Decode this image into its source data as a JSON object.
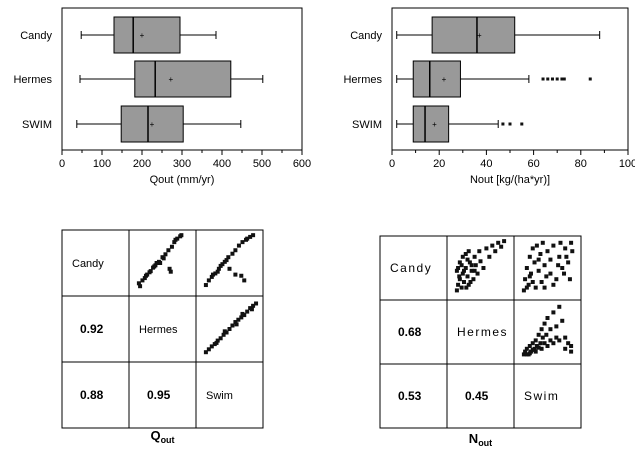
{
  "colors": {
    "box_fill": "#999999",
    "line": "#000000",
    "point": "#111111"
  },
  "chart_data": [
    {
      "type": "boxplot",
      "xlabel": "Qout (mm/yr)",
      "xlim": [
        0,
        600
      ],
      "xticks": [
        "0",
        "100",
        "200",
        "300",
        "400",
        "500",
        "600"
      ],
      "categories": [
        "Candy",
        "Hermes",
        "SWIM"
      ],
      "boxes": [
        {
          "name": "Candy",
          "whisker_low": 48,
          "q1": 130,
          "median": 178,
          "mean": 200,
          "q3": 295,
          "whisker_high": 385,
          "outliers": []
        },
        {
          "name": "Hermes",
          "whisker_low": 45,
          "q1": 182,
          "median": 233,
          "mean": 272,
          "q3": 422,
          "whisker_high": 502,
          "outliers": []
        },
        {
          "name": "SWIM",
          "whisker_low": 37,
          "q1": 148,
          "median": 215,
          "mean": 225,
          "q3": 303,
          "whisker_high": 447,
          "outliers": []
        }
      ]
    },
    {
      "type": "boxplot",
      "xlabel": "Nout [kg/(ha*yr)]",
      "xlim": [
        0,
        100
      ],
      "xticks": [
        "0",
        "20",
        "40",
        "60",
        "80",
        "100"
      ],
      "categories": [
        "Candy",
        "Hermes",
        "SWIM"
      ],
      "boxes": [
        {
          "name": "Candy",
          "whisker_low": 2,
          "q1": 17,
          "median": 36,
          "mean": 37,
          "q3": 52,
          "whisker_high": 88,
          "outliers": []
        },
        {
          "name": "Hermes",
          "whisker_low": 2,
          "q1": 9,
          "median": 16,
          "mean": 22,
          "q3": 29,
          "whisker_high": 58,
          "outliers": [
            64,
            66,
            68,
            70,
            72,
            73,
            84
          ]
        },
        {
          "name": "SWIM",
          "whisker_low": 2,
          "q1": 9,
          "median": 14,
          "mean": 18,
          "q3": 24,
          "whisker_high": 45,
          "outliers": [
            47,
            50,
            55
          ]
        }
      ]
    },
    {
      "type": "scatter_matrix",
      "caption_main": "Q",
      "caption_sub": "out",
      "labels": [
        "Candy",
        "Hermes",
        "Swim"
      ],
      "correlations": [
        {
          "row": 1,
          "col": 0,
          "value": "0.92"
        },
        {
          "row": 2,
          "col": 0,
          "value": "0.88"
        },
        {
          "row": 2,
          "col": 1,
          "value": "0.95"
        }
      ],
      "scatter": [
        {
          "row": 0,
          "col": 1,
          "points": [
            [
              0.1,
              0.15
            ],
            [
              0.16,
              0.2
            ],
            [
              0.22,
              0.28
            ],
            [
              0.28,
              0.34
            ],
            [
              0.34,
              0.42
            ],
            [
              0.38,
              0.46
            ],
            [
              0.44,
              0.52
            ],
            [
              0.5,
              0.6
            ],
            [
              0.55,
              0.65
            ],
            [
              0.3,
              0.36
            ],
            [
              0.2,
              0.24
            ],
            [
              0.6,
              0.72
            ],
            [
              0.7,
              0.86
            ],
            [
              0.75,
              0.92
            ],
            [
              0.8,
              0.96
            ],
            [
              0.66,
              0.78
            ],
            [
              0.46,
              0.5
            ],
            [
              0.62,
              0.4
            ],
            [
              0.64,
              0.35
            ],
            [
              0.24,
              0.3
            ],
            [
              0.12,
              0.1
            ],
            [
              0.4,
              0.5
            ],
            [
              0.36,
              0.44
            ],
            [
              0.52,
              0.58
            ],
            [
              0.72,
              0.9
            ],
            [
              0.82,
              0.98
            ]
          ]
        },
        {
          "row": 0,
          "col": 2,
          "points": [
            [
              0.1,
              0.12
            ],
            [
              0.15,
              0.2
            ],
            [
              0.2,
              0.26
            ],
            [
              0.26,
              0.32
            ],
            [
              0.32,
              0.4
            ],
            [
              0.38,
              0.48
            ],
            [
              0.42,
              0.52
            ],
            [
              0.48,
              0.6
            ],
            [
              0.55,
              0.66
            ],
            [
              0.6,
              0.72
            ],
            [
              0.66,
              0.8
            ],
            [
              0.72,
              0.86
            ],
            [
              0.78,
              0.9
            ],
            [
              0.85,
              0.95
            ],
            [
              0.9,
              0.98
            ],
            [
              0.3,
              0.35
            ],
            [
              0.5,
              0.4
            ],
            [
              0.6,
              0.3
            ],
            [
              0.7,
              0.28
            ],
            [
              0.75,
              0.2
            ],
            [
              0.45,
              0.55
            ],
            [
              0.22,
              0.3
            ],
            [
              0.35,
              0.45
            ],
            [
              0.8,
              0.92
            ]
          ]
        },
        {
          "row": 1,
          "col": 2,
          "points": [
            [
              0.1,
              0.1
            ],
            [
              0.15,
              0.15
            ],
            [
              0.2,
              0.2
            ],
            [
              0.25,
              0.24
            ],
            [
              0.3,
              0.3
            ],
            [
              0.35,
              0.34
            ],
            [
              0.4,
              0.4
            ],
            [
              0.45,
              0.44
            ],
            [
              0.5,
              0.5
            ],
            [
              0.55,
              0.56
            ],
            [
              0.6,
              0.62
            ],
            [
              0.65,
              0.66
            ],
            [
              0.7,
              0.7
            ],
            [
              0.75,
              0.74
            ],
            [
              0.8,
              0.8
            ],
            [
              0.85,
              0.86
            ],
            [
              0.9,
              0.9
            ],
            [
              0.95,
              0.94
            ],
            [
              0.28,
              0.26
            ],
            [
              0.42,
              0.46
            ],
            [
              0.62,
              0.58
            ],
            [
              0.72,
              0.76
            ],
            [
              0.88,
              0.84
            ]
          ]
        }
      ]
    },
    {
      "type": "scatter_matrix",
      "caption_main": "N",
      "caption_sub": "out",
      "labels": [
        "Candy",
        "Hermes",
        "Swim"
      ],
      "correlations": [
        {
          "row": 1,
          "col": 0,
          "value": "0.68"
        },
        {
          "row": 2,
          "col": 0,
          "value": "0.53"
        },
        {
          "row": 2,
          "col": 1,
          "value": "0.45"
        }
      ],
      "scatter": [
        {
          "row": 0,
          "col": 1,
          "points": [
            [
              0.1,
              0.1
            ],
            [
              0.12,
              0.2
            ],
            [
              0.15,
              0.3
            ],
            [
              0.18,
              0.15
            ],
            [
              0.2,
              0.4
            ],
            [
              0.22,
              0.25
            ],
            [
              0.25,
              0.5
            ],
            [
              0.28,
              0.35
            ],
            [
              0.3,
              0.2
            ],
            [
              0.32,
              0.6
            ],
            [
              0.35,
              0.45
            ],
            [
              0.38,
              0.3
            ],
            [
              0.4,
              0.7
            ],
            [
              0.42,
              0.55
            ],
            [
              0.45,
              0.4
            ],
            [
              0.48,
              0.8
            ],
            [
              0.5,
              0.62
            ],
            [
              0.55,
              0.5
            ],
            [
              0.6,
              0.85
            ],
            [
              0.65,
              0.7
            ],
            [
              0.7,
              0.9
            ],
            [
              0.75,
              0.8
            ],
            [
              0.8,
              0.95
            ],
            [
              0.85,
              0.88
            ],
            [
              0.9,
              0.98
            ],
            [
              0.15,
              0.6
            ],
            [
              0.2,
              0.7
            ],
            [
              0.25,
              0.75
            ],
            [
              0.3,
              0.8
            ],
            [
              0.12,
              0.5
            ],
            [
              0.18,
              0.55
            ],
            [
              0.22,
              0.45
            ],
            [
              0.28,
              0.65
            ],
            [
              0.35,
              0.55
            ],
            [
              0.4,
              0.45
            ],
            [
              0.14,
              0.35
            ],
            [
              0.1,
              0.45
            ],
            [
              0.26,
              0.15
            ],
            [
              0.33,
              0.25
            ]
          ]
        },
        {
          "row": 0,
          "col": 2,
          "points": [
            [
              0.1,
              0.1
            ],
            [
              0.12,
              0.3
            ],
            [
              0.15,
              0.5
            ],
            [
              0.18,
              0.2
            ],
            [
              0.2,
              0.7
            ],
            [
              0.22,
              0.4
            ],
            [
              0.25,
              0.85
            ],
            [
              0.28,
              0.6
            ],
            [
              0.3,
              0.15
            ],
            [
              0.32,
              0.9
            ],
            [
              0.35,
              0.45
            ],
            [
              0.38,
              0.75
            ],
            [
              0.4,
              0.25
            ],
            [
              0.42,
              0.95
            ],
            [
              0.45,
              0.55
            ],
            [
              0.48,
              0.35
            ],
            [
              0.5,
              0.8
            ],
            [
              0.55,
              0.65
            ],
            [
              0.6,
              0.9
            ],
            [
              0.65,
              0.3
            ],
            [
              0.7,
              0.7
            ],
            [
              0.75,
              0.5
            ],
            [
              0.8,
              0.85
            ],
            [
              0.85,
              0.6
            ],
            [
              0.9,
              0.95
            ],
            [
              0.15,
              0.15
            ],
            [
              0.2,
              0.35
            ],
            [
              0.25,
              0.25
            ],
            [
              0.35,
              0.65
            ],
            [
              0.45,
              0.15
            ],
            [
              0.55,
              0.4
            ],
            [
              0.6,
              0.2
            ],
            [
              0.68,
              0.55
            ],
            [
              0.72,
              0.95
            ],
            [
              0.78,
              0.4
            ],
            [
              0.82,
              0.7
            ],
            [
              0.88,
              0.3
            ],
            [
              0.92,
              0.8
            ]
          ]
        },
        {
          "row": 1,
          "col": 2,
          "points": [
            [
              0.1,
              0.1
            ],
            [
              0.12,
              0.15
            ],
            [
              0.15,
              0.2
            ],
            [
              0.18,
              0.1
            ],
            [
              0.2,
              0.25
            ],
            [
              0.22,
              0.15
            ],
            [
              0.25,
              0.3
            ],
            [
              0.28,
              0.2
            ],
            [
              0.3,
              0.35
            ],
            [
              0.32,
              0.25
            ],
            [
              0.35,
              0.45
            ],
            [
              0.38,
              0.3
            ],
            [
              0.4,
              0.55
            ],
            [
              0.42,
              0.4
            ],
            [
              0.45,
              0.65
            ],
            [
              0.48,
              0.45
            ],
            [
              0.5,
              0.75
            ],
            [
              0.55,
              0.55
            ],
            [
              0.6,
              0.85
            ],
            [
              0.65,
              0.6
            ],
            [
              0.7,
              0.95
            ],
            [
              0.75,
              0.7
            ],
            [
              0.8,
              0.4
            ],
            [
              0.85,
              0.3
            ],
            [
              0.9,
              0.25
            ],
            [
              0.15,
              0.1
            ],
            [
              0.2,
              0.12
            ],
            [
              0.3,
              0.15
            ],
            [
              0.4,
              0.2
            ],
            [
              0.5,
              0.25
            ],
            [
              0.6,
              0.3
            ],
            [
              0.7,
              0.35
            ],
            [
              0.8,
              0.2
            ],
            [
              0.9,
              0.15
            ],
            [
              0.25,
              0.18
            ],
            [
              0.35,
              0.22
            ],
            [
              0.55,
              0.35
            ],
            [
              0.65,
              0.4
            ],
            [
              0.45,
              0.3
            ]
          ]
        }
      ]
    }
  ]
}
